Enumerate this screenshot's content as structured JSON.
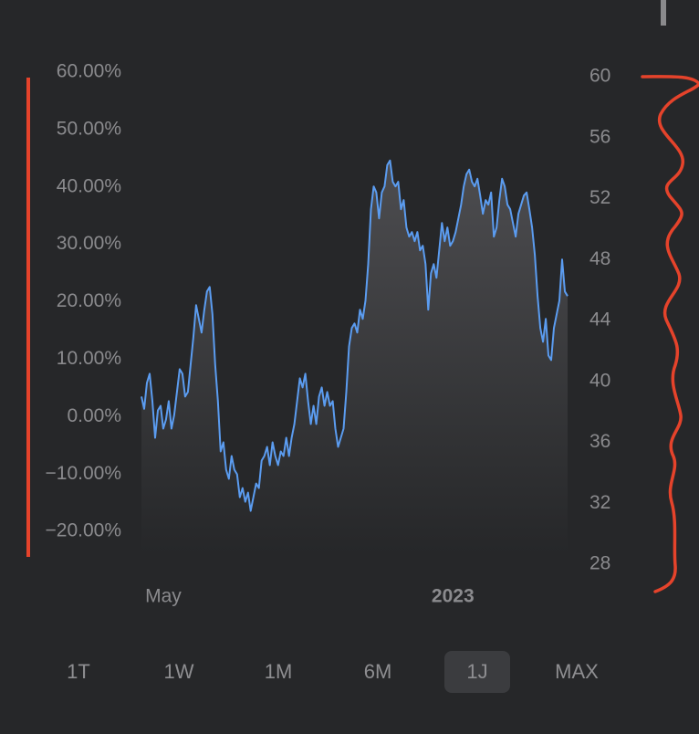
{
  "chart_data": {
    "type": "area",
    "categories": [
      null,
      null,
      null,
      null,
      null,
      null,
      null,
      null,
      "May",
      null,
      null,
      null,
      null,
      null,
      null,
      null,
      null,
      null,
      null,
      null,
      null,
      null,
      null,
      null,
      null,
      null,
      null,
      null,
      null,
      null,
      null,
      null,
      null,
      null,
      null,
      null,
      null,
      null,
      null,
      null,
      null,
      null,
      null,
      null,
      null,
      null,
      null,
      null,
      null,
      null,
      null,
      null,
      null,
      null,
      null,
      null,
      null,
      null,
      null,
      null,
      null,
      null,
      null,
      null,
      null,
      null,
      null,
      null,
      null,
      null,
      null,
      null,
      null,
      null,
      null,
      null,
      null,
      null,
      null,
      null,
      null,
      null,
      null,
      null,
      null,
      null,
      null,
      null,
      null,
      null,
      null,
      null,
      null,
      null,
      null,
      null,
      null,
      null,
      null,
      null,
      null,
      null,
      null,
      null,
      null,
      null,
      null,
      null,
      null,
      null,
      null,
      null,
      null,
      null,
      "2023",
      null,
      null,
      null,
      null,
      null,
      null,
      null,
      null,
      null,
      null,
      null,
      null,
      null,
      null,
      null,
      null,
      null,
      null,
      null,
      null,
      null,
      null,
      null,
      null,
      null,
      null,
      null,
      null,
      null,
      null,
      null,
      null,
      null,
      null,
      null,
      null,
      null,
      null,
      null,
      null,
      null,
      null
    ],
    "series": [
      {
        "color": "#5b9cf0",
        "axis": "y2",
        "values": [
          39.0,
          38.2,
          39.9,
          40.5,
          38.7,
          36.3,
          38.1,
          38.4,
          36.9,
          37.5,
          38.7,
          36.9,
          37.8,
          39.3,
          40.8,
          40.5,
          39.0,
          39.3,
          41.1,
          42.9,
          45.0,
          44.1,
          43.2,
          44.7,
          45.9,
          46.2,
          44.4,
          41.1,
          38.7,
          35.4,
          36.0,
          34.2,
          33.6,
          35.1,
          34.2,
          33.9,
          32.4,
          33.0,
          32.1,
          32.7,
          31.5,
          32.4,
          33.3,
          33.0,
          34.8,
          35.1,
          35.7,
          34.5,
          36.0,
          35.1,
          34.5,
          35.4,
          35.1,
          36.3,
          35.1,
          36.3,
          37.2,
          38.7,
          40.2,
          39.6,
          40.5,
          38.7,
          37.2,
          38.4,
          37.2,
          39.0,
          39.6,
          38.4,
          39.3,
          38.4,
          38.7,
          36.9,
          35.7,
          36.3,
          36.9,
          39.3,
          42.3,
          43.5,
          43.8,
          43.2,
          44.7,
          44.1,
          45.3,
          47.7,
          51.3,
          52.8,
          52.4,
          50.7,
          52.4,
          52.8,
          54.2,
          54.5,
          53.1,
          52.8,
          53.1,
          51.3,
          51.9,
          50.1,
          49.5,
          49.8,
          49.2,
          49.8,
          48.6,
          48.9,
          47.7,
          44.7,
          47.1,
          47.7,
          46.8,
          48.6,
          50.4,
          49.2,
          50.1,
          48.9,
          49.2,
          49.8,
          50.7,
          51.6,
          52.8,
          53.6,
          53.9,
          53.1,
          52.8,
          53.3,
          52.2,
          51.0,
          51.9,
          51.6,
          52.4,
          49.5,
          50.1,
          51.9,
          53.3,
          52.8,
          51.6,
          51.3,
          50.4,
          49.5,
          51.0,
          51.6,
          52.2,
          52.4,
          51.3,
          50.1,
          48.3,
          45.6,
          43.5,
          42.6,
          44.1,
          41.7,
          41.4,
          43.5,
          44.4,
          45.3,
          48.0,
          45.9,
          45.6
        ]
      }
    ],
    "ylim": [
      -25.7,
      59.2
    ],
    "yticks": [
      {
        "value": 60,
        "label": "60.00%"
      },
      {
        "value": 50,
        "label": "50.00%"
      },
      {
        "value": 40,
        "label": "40.00%"
      },
      {
        "value": 30,
        "label": "30.00%"
      },
      {
        "value": 20,
        "label": "20.00%"
      },
      {
        "value": 10,
        "label": "10.00%"
      },
      {
        "value": 0,
        "label": "0.00%"
      },
      {
        "value": -10,
        "label": "−10.00%"
      },
      {
        "value": -20,
        "label": "−20.00%"
      }
    ],
    "y2lim": [
      28,
      60
    ],
    "y2ticks": [
      60,
      56,
      52,
      48,
      44,
      40,
      36,
      32,
      28
    ],
    "grid": false
  },
  "tabs": [
    "1T",
    "1W",
    "1M",
    "6M",
    "1J",
    "MAX"
  ],
  "selected_tab": "1J"
}
